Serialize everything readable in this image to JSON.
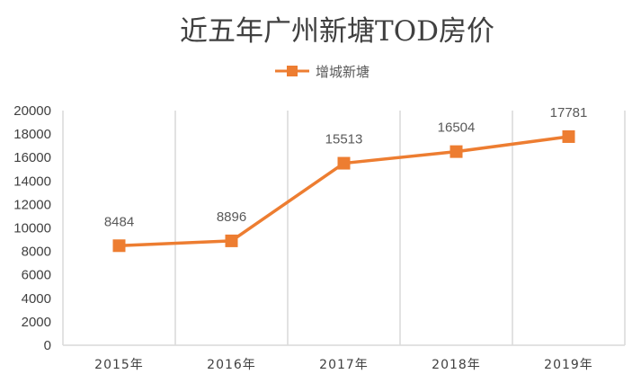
{
  "chart_data": {
    "type": "line",
    "title": "近五年广州新塘TOD房价",
    "categories": [
      "2015年",
      "2016年",
      "2017年",
      "2018年",
      "2019年"
    ],
    "series": [
      {
        "name": "增城新塘",
        "values": [
          8484,
          8896,
          15513,
          16504,
          17781
        ]
      }
    ],
    "data_labels": [
      "8484",
      "8896",
      "15513",
      "16504",
      "17781"
    ],
    "yticks": [
      "0",
      "2000",
      "4000",
      "6000",
      "8000",
      "10000",
      "12000",
      "14000",
      "16000",
      "18000",
      "20000"
    ],
    "ylim": [
      0,
      20000
    ],
    "xlabel": "",
    "ylabel": "",
    "legend": "top-center",
    "grid": "vertical",
    "colors": {
      "line": "#ed7d31",
      "marker": "#ed7d31",
      "grid": "#d9d9d9"
    }
  }
}
